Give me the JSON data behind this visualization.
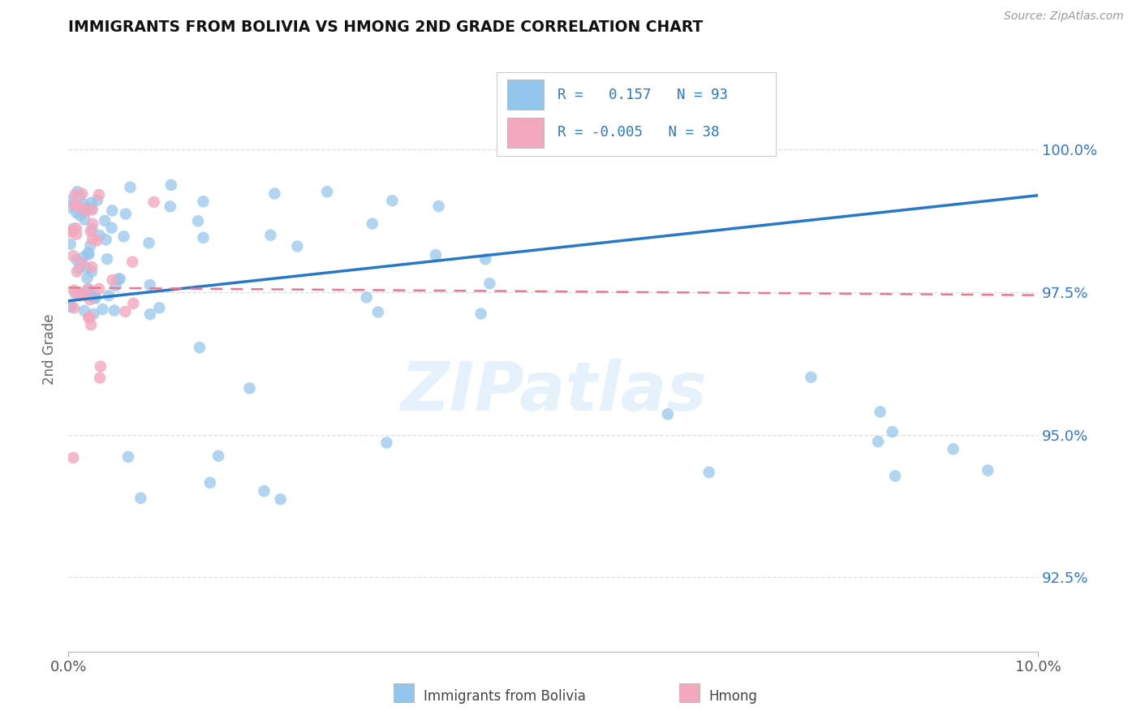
{
  "title": "IMMIGRANTS FROM BOLIVIA VS HMONG 2ND GRADE CORRELATION CHART",
  "source": "Source: ZipAtlas.com",
  "ylabel": "2nd Grade",
  "xlim": [
    0.0,
    10.0
  ],
  "ylim": [
    91.2,
    101.8
  ],
  "yticks": [
    92.5,
    95.0,
    97.5,
    100.0
  ],
  "ytick_labels": [
    "92.5%",
    "95.0%",
    "97.5%",
    "100.0%"
  ],
  "xtick_labels": [
    "0.0%",
    "10.0%"
  ],
  "legend_R1": "0.157",
  "legend_N1": "93",
  "legend_R2": "-0.005",
  "legend_N2": "38",
  "color_bolivia": "#93C6EC",
  "color_hmong": "#F4A8BE",
  "color_bolivia_line": "#2878C8",
  "color_hmong_line": "#E87890",
  "watermark_text": "ZIPatlas",
  "bottom_legend_bolivia": "Immigrants from Bolivia",
  "bottom_legend_hmong": "Hmong",
  "bolivia_trend_y0": 97.35,
  "bolivia_trend_y1": 99.2,
  "hmong_trend_y0": 97.58,
  "hmong_trend_y1": 97.45
}
